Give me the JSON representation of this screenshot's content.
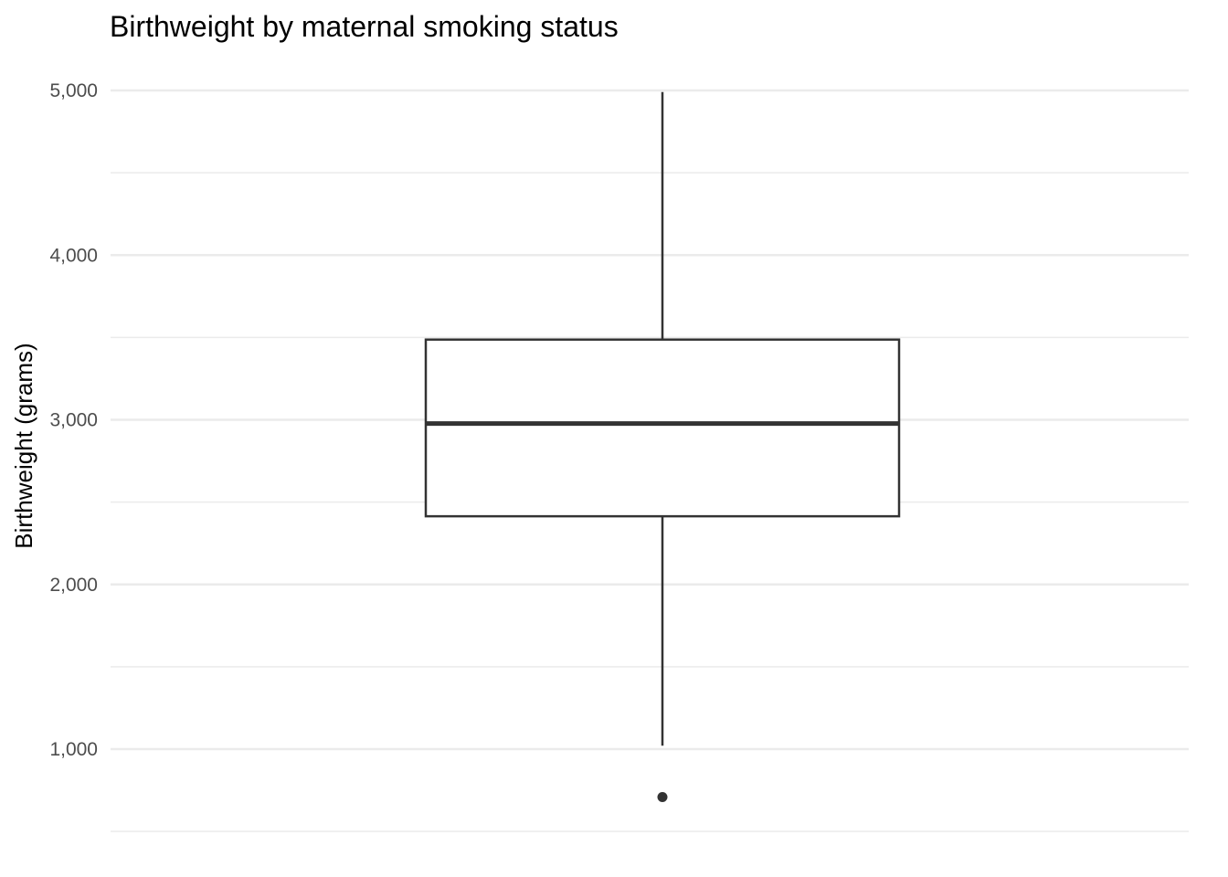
{
  "chart_data": {
    "type": "boxplot",
    "title": "Birthweight by maternal smoking status",
    "xlabel": "",
    "ylabel": "Birthweight (grams)",
    "ylim": [
      500,
      5000
    ],
    "yticks": [
      1000,
      2000,
      3000,
      4000,
      5000
    ],
    "ytick_labels": [
      "1,000",
      "2,000",
      "3,000",
      "4,000",
      "5,000"
    ],
    "minor_gridlines": [
      1500,
      2500,
      3500,
      4500,
      500
    ],
    "grid": true,
    "legend": "none",
    "boxes": [
      {
        "whisker_low": 1021,
        "q1": 2414,
        "median": 2977,
        "q3": 3487,
        "whisker_high": 4990,
        "outliers": [
          709
        ]
      }
    ],
    "colors": {
      "box_stroke": "#333333",
      "box_fill": "#ffffff",
      "gridline": "#ebebeb",
      "outlier": "#333333"
    }
  }
}
